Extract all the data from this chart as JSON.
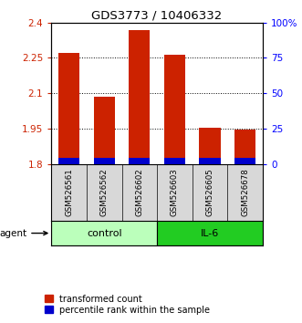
{
  "title": "GDS3773 / 10406332",
  "samples": [
    "GSM526561",
    "GSM526562",
    "GSM526602",
    "GSM526603",
    "GSM526605",
    "GSM526678"
  ],
  "transformed_counts": [
    2.27,
    2.085,
    2.37,
    2.265,
    1.955,
    1.945
  ],
  "percentile_bar_height": 0.025,
  "ymin": 1.8,
  "ymax": 2.4,
  "yticks": [
    1.8,
    1.95,
    2.1,
    2.25,
    2.4
  ],
  "ytick_labels": [
    "1.8",
    "1.95",
    "2.1",
    "2.25",
    "2.4"
  ],
  "right_yticks": [
    0,
    25,
    50,
    75,
    100
  ],
  "right_ytick_labels": [
    "0",
    "25",
    "50",
    "75",
    "100%"
  ],
  "bar_color_red": "#CC2200",
  "bar_color_blue": "#0000CC",
  "control_color": "#BBFFBB",
  "il6_color": "#22CC22",
  "legend_items": [
    "transformed count",
    "percentile rank within the sample"
  ],
  "bar_width": 0.6,
  "grid_yticks": [
    1.95,
    2.1,
    2.25
  ],
  "n_control": 3,
  "n_il6": 3
}
